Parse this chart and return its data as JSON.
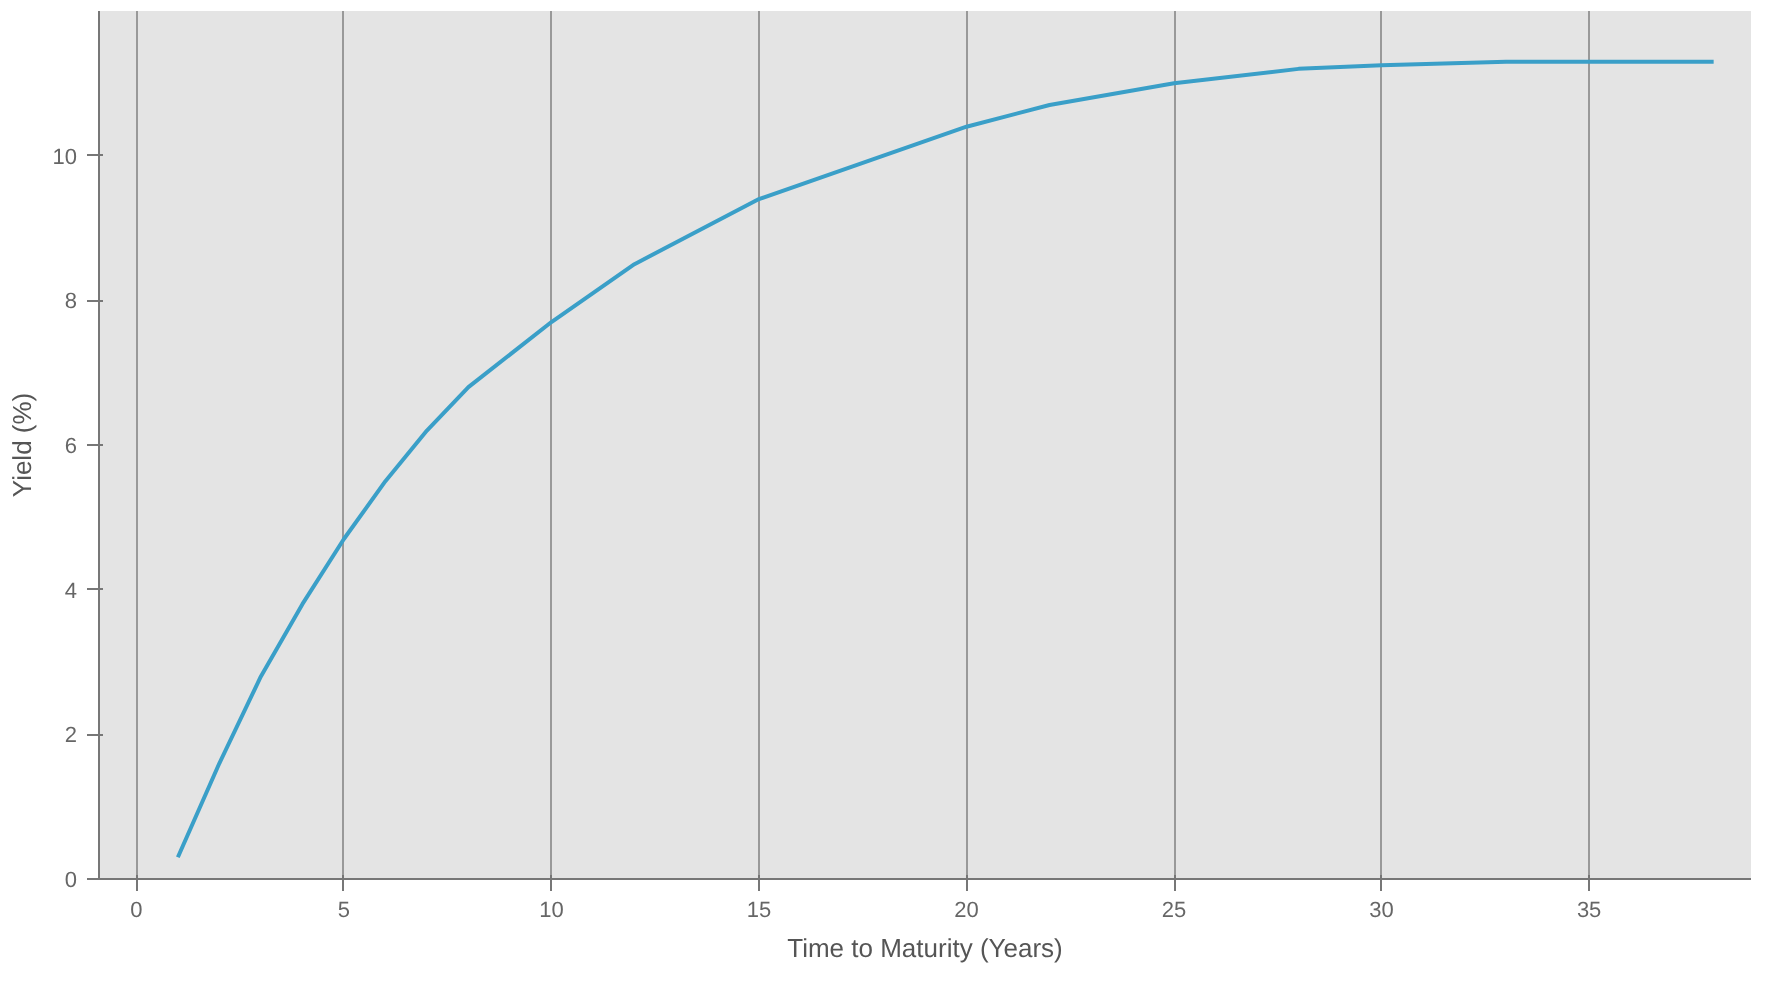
{
  "chart_data": {
    "type": "line",
    "xlabel": "Time to Maturity (Years)",
    "ylabel": "Yield (%)",
    "x": [
      1,
      2,
      3,
      4,
      5,
      6,
      7,
      8,
      10,
      12,
      15,
      18,
      20,
      22,
      25,
      28,
      30,
      33,
      35,
      38
    ],
    "series": [
      {
        "color": "#3a9fc8",
        "values": [
          0.3,
          1.6,
          2.8,
          3.8,
          4.7,
          5.5,
          6.2,
          6.8,
          7.7,
          8.5,
          9.4,
          10.0,
          10.4,
          10.7,
          11.0,
          11.2,
          11.25,
          11.3,
          11.3,
          11.3
        ]
      }
    ],
    "xlim": [
      -0.9,
      38.9
    ],
    "ylim": [
      0,
      12
    ],
    "xticks": [
      0,
      5,
      10,
      15,
      20,
      25,
      30,
      35
    ],
    "yticks": [
      0,
      2,
      4,
      6,
      8,
      10
    ],
    "grid": "x",
    "marker": "none",
    "line_style": "solid"
  }
}
